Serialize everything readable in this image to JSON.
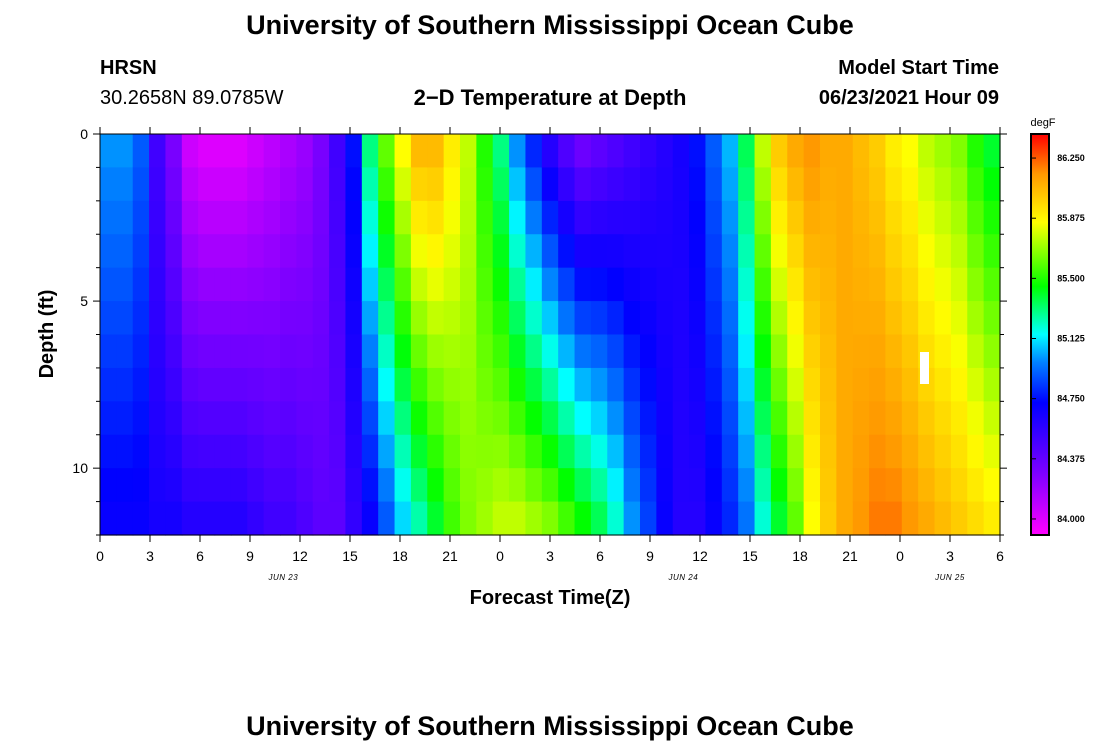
{
  "header": {
    "title": "University of Southern Mississippi Ocean Cube",
    "station": "HRSN",
    "coords": "30.2658N  89.0785W",
    "chart_title": "2−D Temperature at Depth",
    "model_start_label": "Model Start Time",
    "model_start_value": "06/23/2021 Hour 09"
  },
  "footer": {
    "title": "University of Southern Mississippi Ocean Cube"
  },
  "chart_data": {
    "type": "heatmap",
    "title": "2−D Temperature at Depth",
    "xlabel": "Forecast Time(Z)",
    "ylabel": "Depth (ft)",
    "units": "degF",
    "x_hours_range": [
      0,
      54
    ],
    "x_ticks": [
      "0",
      "3",
      "6",
      "9",
      "12",
      "15",
      "18",
      "21",
      "0",
      "3",
      "6",
      "9",
      "12",
      "15",
      "18",
      "21",
      "0",
      "3",
      "6"
    ],
    "date_labels": [
      {
        "text": "JUN 23",
        "hour": 11
      },
      {
        "text": "JUN 24",
        "hour": 35
      },
      {
        "text": "JUN 25",
        "hour": 51
      }
    ],
    "y_ticks": [
      0,
      5,
      10
    ],
    "ylim": [
      0,
      12
    ],
    "colorbar": {
      "label": "degF",
      "min": 83.9,
      "max": 86.4,
      "ticks": [
        "86.250",
        "85.875",
        "85.500",
        "85.125",
        "84.750",
        "84.375",
        "84.000"
      ]
    },
    "surface_temps": [
      85.0,
      85.0,
      84.9,
      84.5,
      84.3,
      84.05,
      84.0,
      84.0,
      84.0,
      84.05,
      84.1,
      84.15,
      84.2,
      84.3,
      84.5,
      84.75,
      85.3,
      85.6,
      85.85,
      86.05,
      86.05,
      85.9,
      85.75,
      85.5,
      85.3,
      85.0,
      84.8,
      84.6,
      84.45,
      84.35,
      84.4,
      84.45,
      84.5,
      84.55,
      84.6,
      84.65,
      84.75,
      84.9,
      85.05,
      85.35,
      85.75,
      86.0,
      86.1,
      86.15,
      86.1,
      86.1,
      86.05,
      86.0,
      85.9,
      85.85,
      85.75,
      85.7,
      85.65,
      85.5,
      85.4
    ],
    "bottom_temps": [
      84.7,
      84.7,
      84.7,
      84.65,
      84.65,
      84.6,
      84.6,
      84.6,
      84.6,
      84.55,
      84.5,
      84.5,
      84.45,
      84.4,
      84.4,
      84.55,
      84.7,
      84.9,
      85.1,
      85.25,
      85.4,
      85.55,
      85.65,
      85.7,
      85.75,
      85.75,
      85.7,
      85.65,
      85.55,
      85.45,
      85.35,
      85.2,
      85.0,
      84.85,
      84.7,
      84.6,
      84.6,
      84.7,
      84.8,
      84.95,
      85.2,
      85.4,
      85.6,
      85.85,
      86.0,
      86.1,
      86.15,
      86.2,
      86.2,
      86.15,
      86.1,
      86.05,
      86.0,
      85.95,
      85.9
    ]
  }
}
